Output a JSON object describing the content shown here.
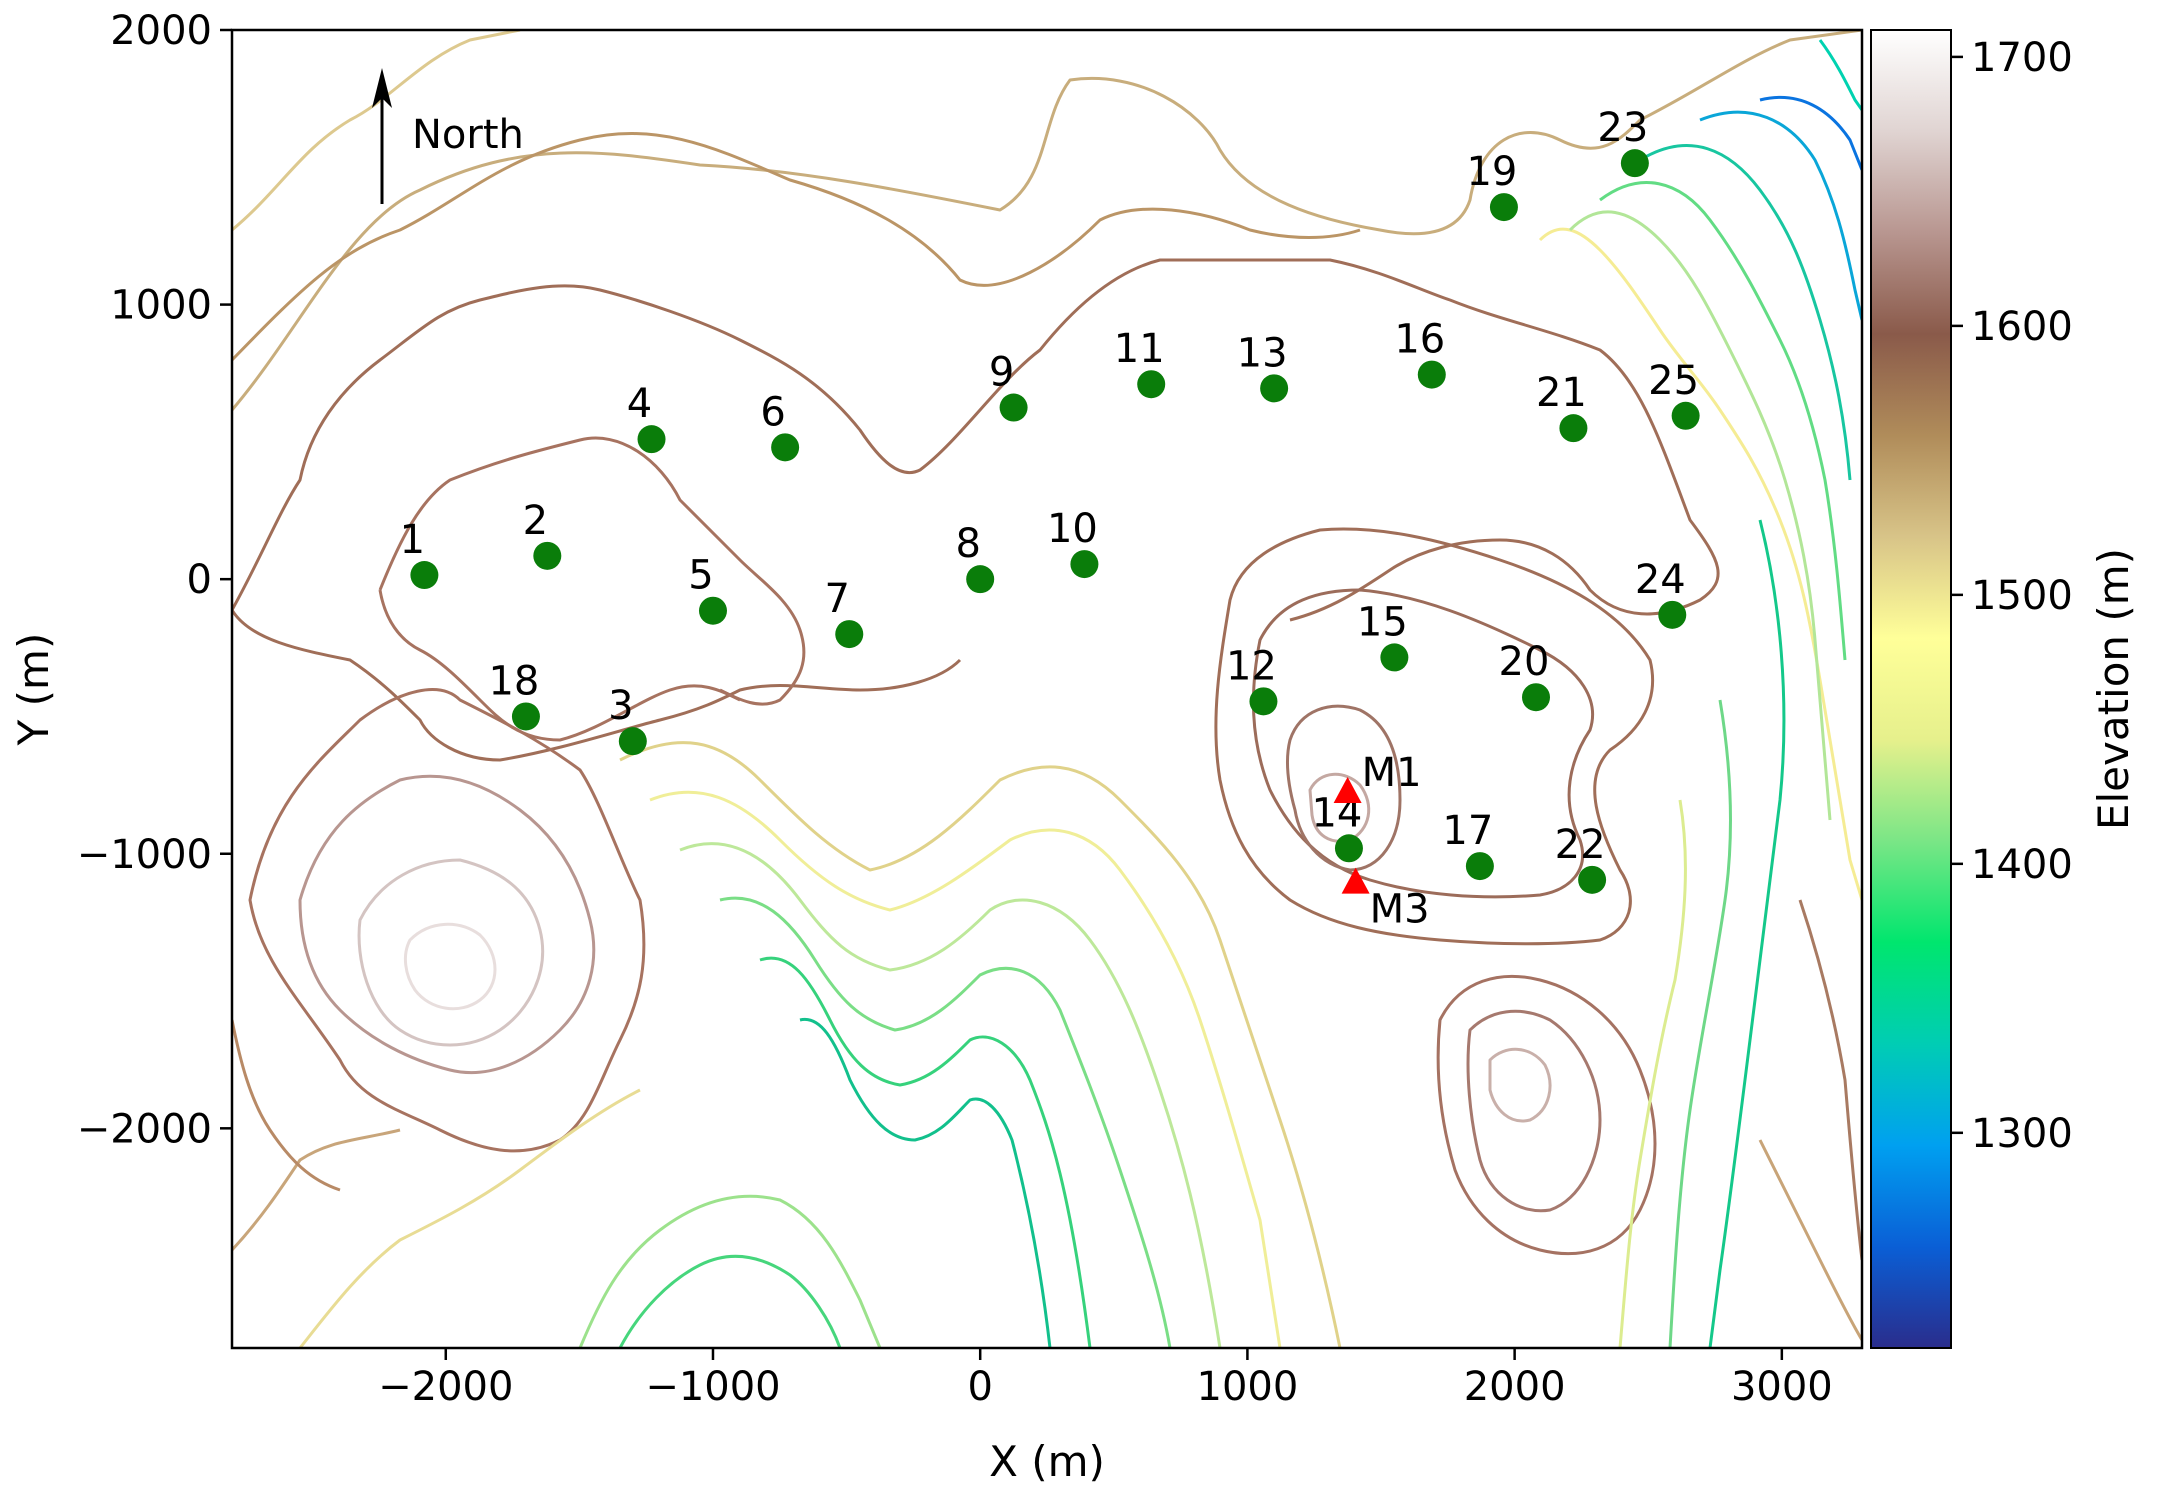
{
  "map": {
    "xlabel": "X (m)",
    "ylabel": "Y (m)",
    "xlim": [
      -2800,
      3300
    ],
    "ylim": [
      -2800,
      2000
    ],
    "x_ticks": [
      {
        "v": -2000,
        "label": "−2000"
      },
      {
        "v": -1000,
        "label": "−1000"
      },
      {
        "v": 0,
        "label": "0"
      },
      {
        "v": 1000,
        "label": "1000"
      },
      {
        "v": 2000,
        "label": "2000"
      },
      {
        "v": 3000,
        "label": "3000"
      }
    ],
    "y_ticks": [
      {
        "v": -2000,
        "label": "−2000"
      },
      {
        "v": -1000,
        "label": "−1000"
      },
      {
        "v": 0,
        "label": "0"
      },
      {
        "v": 1000,
        "label": "1000"
      },
      {
        "v": 2000,
        "label": "2000"
      }
    ],
    "north_label": "North",
    "marker_colors": {
      "site": "#0a7d0a",
      "mast": "#ff0000"
    }
  },
  "chart_data": {
    "type": "scatter",
    "series": [
      {
        "marker": "circle",
        "points": [
          {
            "label": "1",
            "x": -2080,
            "y": 15
          },
          {
            "label": "2",
            "x": -1620,
            "y": 85
          },
          {
            "label": "3",
            "x": -1300,
            "y": -590
          },
          {
            "label": "4",
            "x": -1230,
            "y": 510
          },
          {
            "label": "5",
            "x": -1000,
            "y": -115
          },
          {
            "label": "6",
            "x": -730,
            "y": 480
          },
          {
            "label": "7",
            "x": -490,
            "y": -200
          },
          {
            "label": "8",
            "x": 0,
            "y": 0
          },
          {
            "label": "9",
            "x": 125,
            "y": 625
          },
          {
            "label": "10",
            "x": 390,
            "y": 55
          },
          {
            "label": "11",
            "x": 640,
            "y": 710
          },
          {
            "label": "12",
            "x": 1060,
            "y": -445
          },
          {
            "label": "13",
            "x": 1100,
            "y": 695
          },
          {
            "label": "14",
            "x": 1380,
            "y": -980
          },
          {
            "label": "15",
            "x": 1550,
            "y": -285
          },
          {
            "label": "16",
            "x": 1690,
            "y": 745
          },
          {
            "label": "17",
            "x": 1870,
            "y": -1045
          },
          {
            "label": "18",
            "x": -1700,
            "y": -500
          },
          {
            "label": "19",
            "x": 1960,
            "y": 1355
          },
          {
            "label": "20",
            "x": 2080,
            "y": -430
          },
          {
            "label": "21",
            "x": 2220,
            "y": 550
          },
          {
            "label": "22",
            "x": 2290,
            "y": -1095
          },
          {
            "label": "23",
            "x": 2450,
            "y": 1515
          },
          {
            "label": "24",
            "x": 2590,
            "y": -130
          },
          {
            "label": "25",
            "x": 2640,
            "y": 595
          }
        ]
      },
      {
        "marker": "triangle",
        "points": [
          {
            "label": "M1",
            "x": 1375,
            "y": -775
          },
          {
            "label": "M3",
            "x": 1405,
            "y": -1105
          }
        ]
      }
    ]
  },
  "colorbar": {
    "title": "Elevation (m)",
    "range": [
      1220,
      1710
    ],
    "ticks": [
      {
        "v": 1300,
        "label": "1300"
      },
      {
        "v": 1400,
        "label": "1400"
      },
      {
        "v": 1500,
        "label": "1500"
      },
      {
        "v": 1600,
        "label": "1600"
      },
      {
        "v": 1700,
        "label": "1700"
      }
    ],
    "colormap": [
      "#2a2d8c",
      "#0a5fd6",
      "#00a0f0",
      "#00cdb4",
      "#00e66e",
      "#7ae686",
      "#e6f08c",
      "#ffff99",
      "#d8c488",
      "#b08c5a",
      "#8a5a4a",
      "#b89690",
      "#e0d4d2",
      "#ffffff"
    ]
  }
}
